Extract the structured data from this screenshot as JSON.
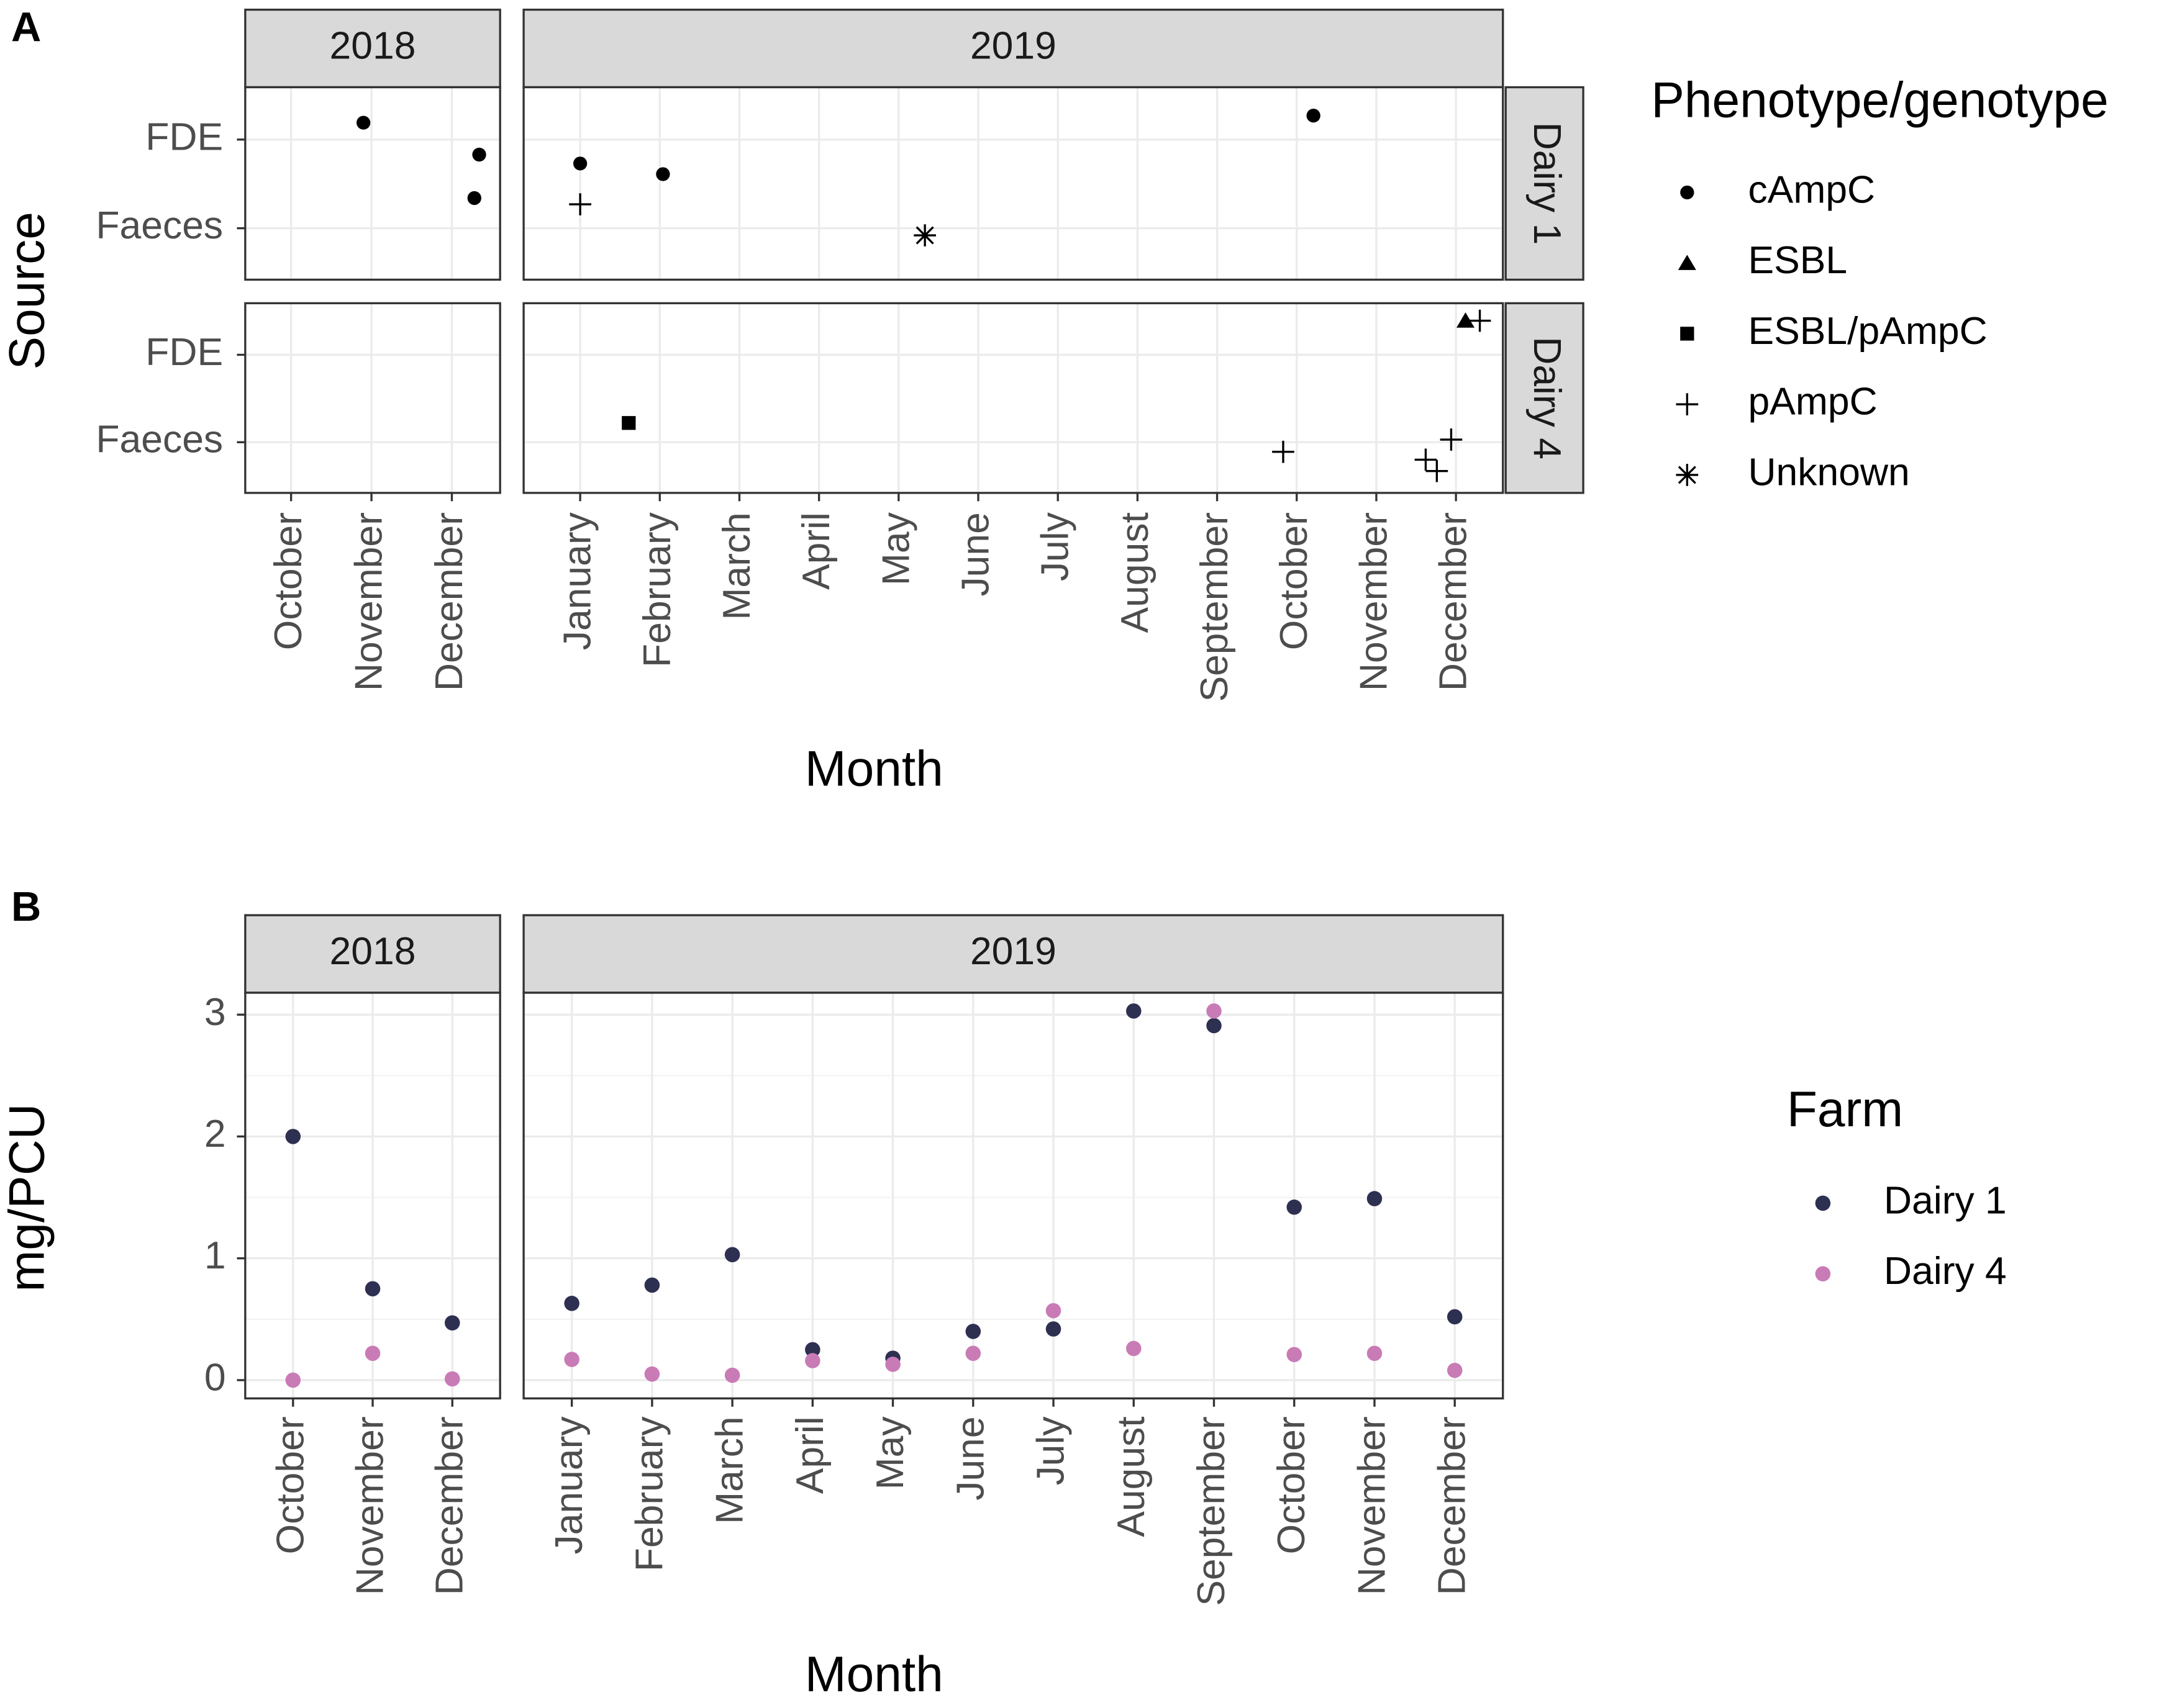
{
  "chart_data": [
    {
      "type": "scatter",
      "label": "A",
      "xlabel": "Month",
      "ylabel": "Source",
      "legend_title": "Phenotype/genotype",
      "legend": "right",
      "grid": true,
      "columns": [
        {
          "label": "2018",
          "xlim": [
            9.43,
            12.6
          ],
          "xticks": [
            {
              "value": 10,
              "label": "October"
            },
            {
              "value": 11,
              "label": "November"
            },
            {
              "value": 12,
              "label": "December"
            }
          ]
        },
        {
          "label": "2019",
          "xlim": [
            0.29,
            12.59
          ],
          "xticks": [
            {
              "value": 1,
              "label": "January"
            },
            {
              "value": 2,
              "label": "February"
            },
            {
              "value": 3,
              "label": "March"
            },
            {
              "value": 4,
              "label": "April"
            },
            {
              "value": 5,
              "label": "May"
            },
            {
              "value": 6,
              "label": "June"
            },
            {
              "value": 7,
              "label": "July"
            },
            {
              "value": 8,
              "label": "August"
            },
            {
              "value": 9,
              "label": "September"
            },
            {
              "value": 10,
              "label": "October"
            },
            {
              "value": 11,
              "label": "November"
            },
            {
              "value": 12,
              "label": "December"
            }
          ]
        }
      ],
      "rows": [
        {
          "label": "Dairy 1"
        },
        {
          "label": "Dairy 4"
        }
      ],
      "ylim": [
        0.42,
        2.59
      ],
      "yticks": [
        {
          "value": 1,
          "label": "Faeces"
        },
        {
          "value": 2,
          "label": "FDE"
        }
      ],
      "series": [
        {
          "name": "cAmpC",
          "marker": "circle",
          "color": "#000000",
          "points": [
            {
              "column": "2018",
              "row": "Dairy 1",
              "x": 10.9,
              "y": 2.19
            },
            {
              "column": "2018",
              "row": "Dairy 1",
              "x": 12.34,
              "y": 1.83
            },
            {
              "column": "2018",
              "row": "Dairy 1",
              "x": 12.28,
              "y": 1.34
            },
            {
              "column": "2019",
              "row": "Dairy 1",
              "x": 1.0,
              "y": 1.73
            },
            {
              "column": "2019",
              "row": "Dairy 1",
              "x": 2.04,
              "y": 1.61
            },
            {
              "column": "2019",
              "row": "Dairy 1",
              "x": 10.21,
              "y": 2.27
            }
          ]
        },
        {
          "name": "ESBL",
          "marker": "triangle",
          "color": "#000000",
          "points": [
            {
              "column": "2019",
              "row": "Dairy 4",
              "x": 12.12,
              "y": 2.39
            }
          ]
        },
        {
          "name": "ESBL/pAmpC",
          "marker": "square",
          "color": "#000000",
          "points": [
            {
              "column": "2019",
              "row": "Dairy 4",
              "x": 1.61,
              "y": 1.22
            }
          ]
        },
        {
          "name": "pAmpC",
          "marker": "plus",
          "color": "#000000",
          "points": [
            {
              "column": "2019",
              "row": "Dairy 1",
              "x": 1.0,
              "y": 1.27
            },
            {
              "column": "2019",
              "row": "Dairy 4",
              "x": 12.3,
              "y": 2.39
            },
            {
              "column": "2019",
              "row": "Dairy 4",
              "x": 9.83,
              "y": 0.89
            },
            {
              "column": "2019",
              "row": "Dairy 4",
              "x": 11.62,
              "y": 0.8
            },
            {
              "column": "2019",
              "row": "Dairy 4",
              "x": 11.76,
              "y": 0.67
            },
            {
              "column": "2019",
              "row": "Dairy 4",
              "x": 11.94,
              "y": 1.03
            }
          ]
        },
        {
          "name": "Unknown",
          "marker": "asterisk",
          "color": "#000000",
          "points": [
            {
              "column": "2019",
              "row": "Dairy 1",
              "x": 5.33,
              "y": 0.92
            }
          ]
        }
      ]
    },
    {
      "type": "scatter",
      "label": "B",
      "xlabel": "Month",
      "ylabel": "mg/PCU",
      "legend_title": "Farm",
      "legend": "right",
      "grid": true,
      "minor_grid": true,
      "columns": [
        {
          "label": "2018",
          "categories": [
            "October",
            "November",
            "December"
          ]
        },
        {
          "label": "2019",
          "categories": [
            "January",
            "February",
            "March",
            "April",
            "May",
            "June",
            "July",
            "August",
            "September",
            "October",
            "November",
            "December"
          ]
        }
      ],
      "ylim": [
        -0.15,
        3.18
      ],
      "yticks": [
        0,
        1,
        2,
        3
      ],
      "series": [
        {
          "name": "Dairy 1",
          "color": "#2e3052",
          "values": [
            [
              2.0,
              0.75,
              0.47
            ],
            [
              0.63,
              0.78,
              1.03,
              0.25,
              0.18,
              0.4,
              0.42,
              3.03,
              2.91,
              1.42,
              1.49,
              0.52
            ]
          ]
        },
        {
          "name": "Dairy 4",
          "color": "#c97bb6",
          "values": [
            [
              0.0,
              0.22,
              0.01
            ],
            [
              0.17,
              0.05,
              0.04,
              0.16,
              0.13,
              0.22,
              0.57,
              0.26,
              3.03,
              0.21,
              0.22,
              0.08
            ]
          ]
        }
      ]
    }
  ]
}
